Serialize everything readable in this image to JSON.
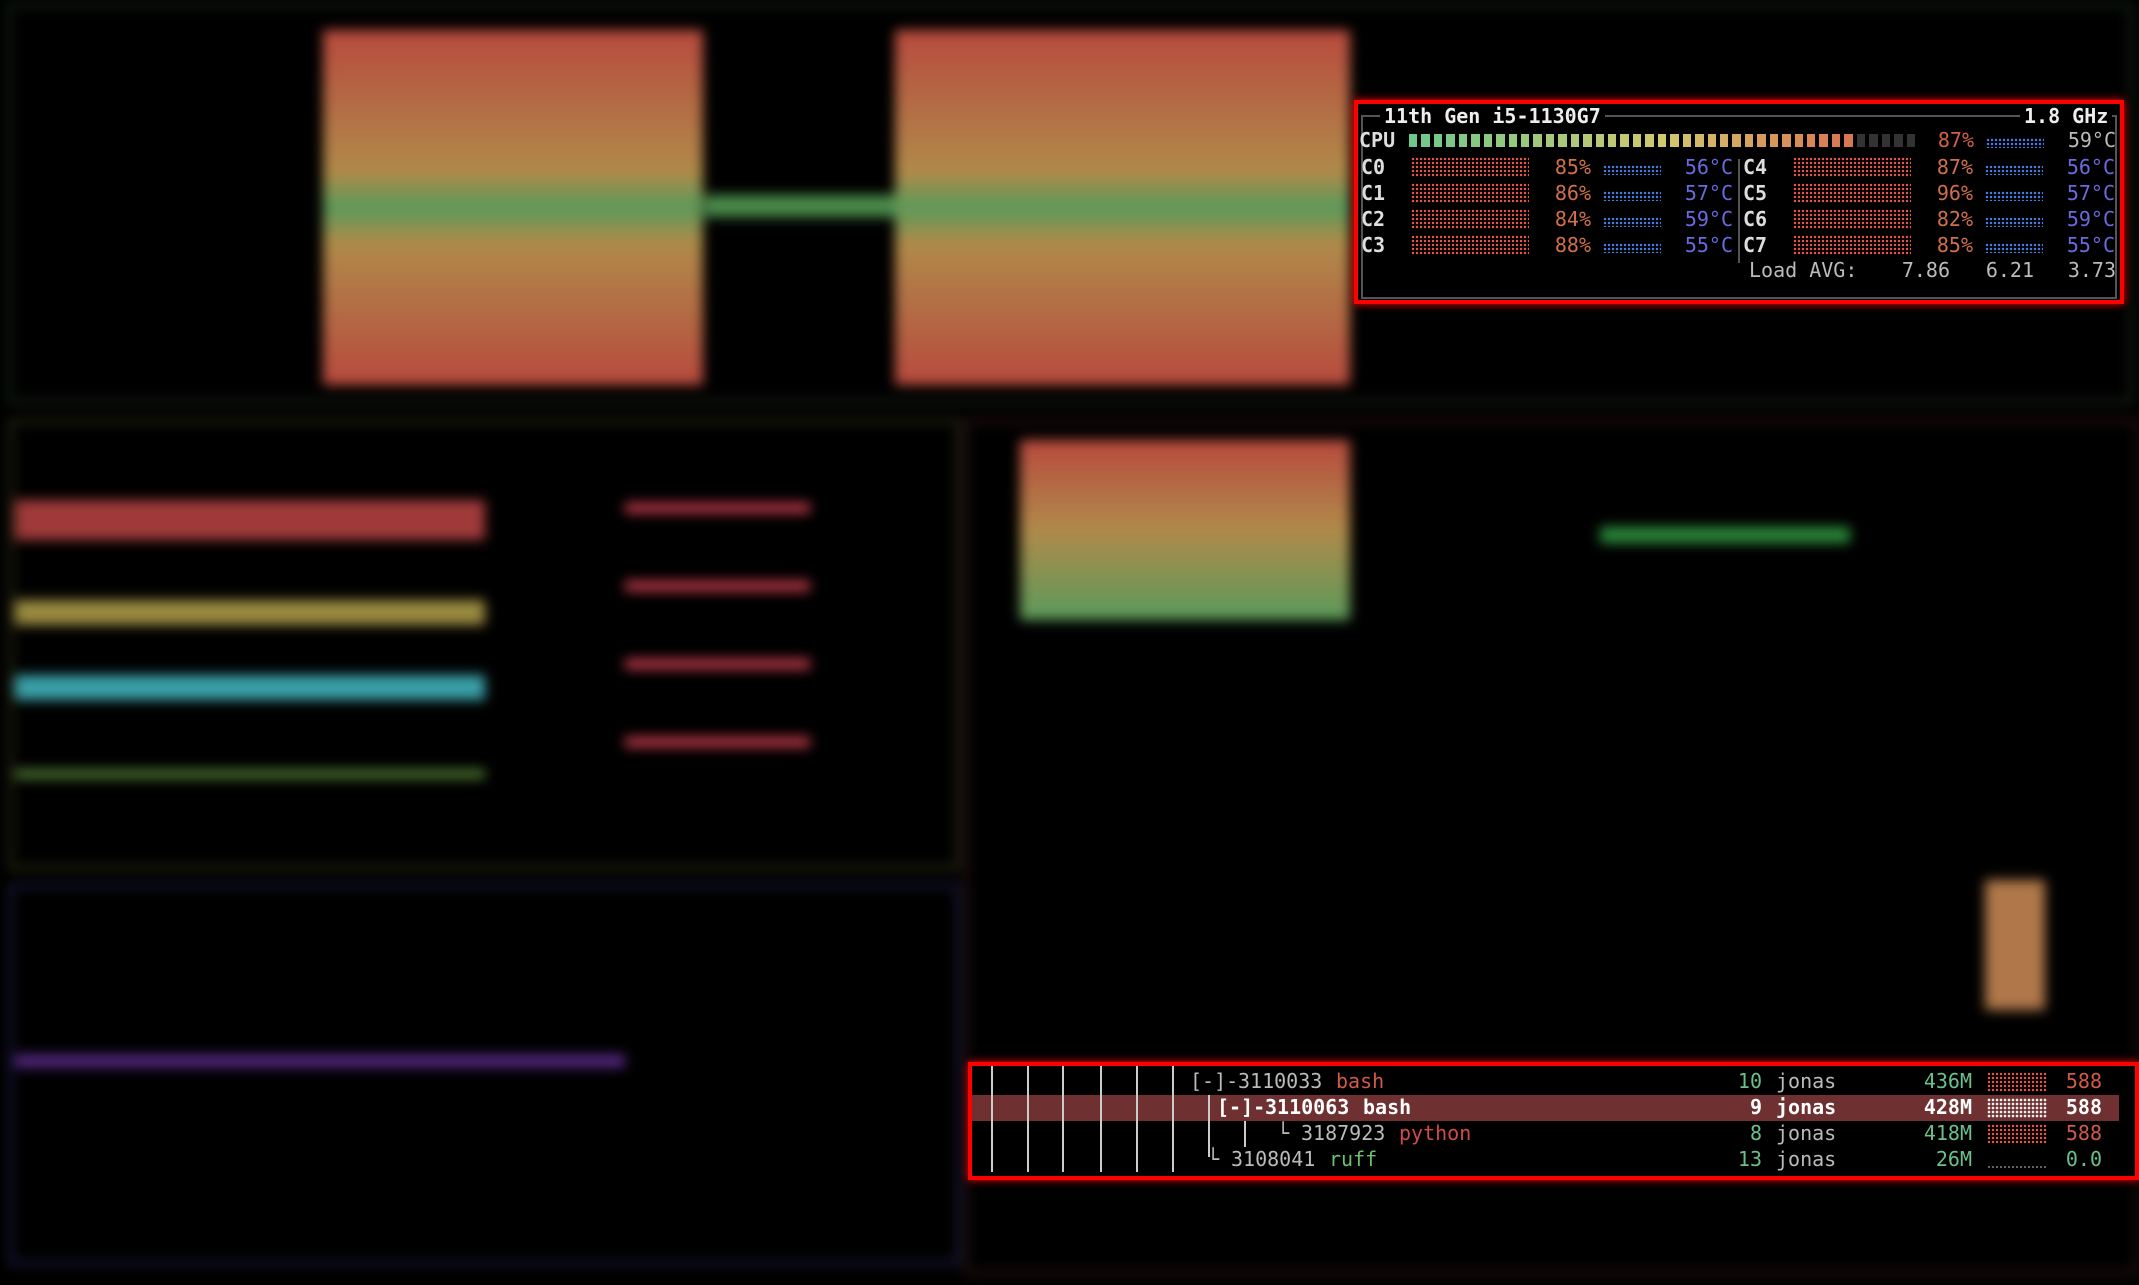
{
  "cpu": {
    "model": "11th Gen i5-1130G7",
    "freq": "1.8 GHz",
    "total": {
      "label": "CPU",
      "percent": 87,
      "percent_text": "87%",
      "temp": "59°C"
    },
    "cores": [
      {
        "label": "C0",
        "percent": "85%",
        "temp": "56°C"
      },
      {
        "label": "C1",
        "percent": "86%",
        "temp": "57°C"
      },
      {
        "label": "C2",
        "percent": "84%",
        "temp": "59°C"
      },
      {
        "label": "C3",
        "percent": "88%",
        "temp": "55°C"
      },
      {
        "label": "C4",
        "percent": "87%",
        "temp": "56°C"
      },
      {
        "label": "C5",
        "percent": "96%",
        "temp": "57°C"
      },
      {
        "label": "C6",
        "percent": "82%",
        "temp": "59°C"
      },
      {
        "label": "C7",
        "percent": "85%",
        "temp": "55°C"
      }
    ],
    "load_label": "Load AVG:",
    "load": [
      "7.86",
      "6.21",
      "3.73"
    ]
  },
  "processes": {
    "rows": [
      {
        "prefix": "[-]-",
        "pid": "3110033",
        "name": "bash",
        "threads": "10",
        "user": "jonas",
        "mem": "436M",
        "cpu": "588",
        "selected": false
      },
      {
        "prefix": "[-]-",
        "pid": "3110063",
        "name": "bash",
        "threads": "9",
        "user": "jonas",
        "mem": "428M",
        "cpu": "588",
        "selected": true
      },
      {
        "prefix": "└ ",
        "pid": "3187923",
        "name": "python",
        "threads": "8",
        "user": "jonas",
        "mem": "418M",
        "cpu": "588",
        "selected": false
      },
      {
        "prefix": "└ ",
        "pid": "3108041",
        "name": "ruff",
        "threads": "13",
        "user": "jonas",
        "mem": "26M",
        "cpu": "0.0",
        "selected": false
      }
    ]
  },
  "colors": {
    "highlight": "#ff0000",
    "selected_row": "#6e3030",
    "name_red": "#d05a4a",
    "name_green": "#6cbf6c",
    "num_green": "#6cbf8c",
    "temp_blue": "#6a6ae0"
  }
}
